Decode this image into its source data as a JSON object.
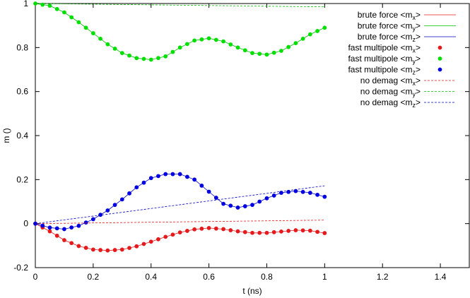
{
  "chart_data": {
    "type": "line",
    "xlabel": "t (ns)",
    "ylabel": "m ()",
    "xlim": [
      0,
      1.5
    ],
    "ylim": [
      -0.2,
      1.0
    ],
    "xticks": [
      "0",
      "0.2",
      "0.4",
      "0.6",
      "0.8",
      "1",
      "1.2",
      "1.4"
    ],
    "yticks": [
      "-0.2",
      "0",
      "0.2",
      "0.4",
      "0.6",
      "0.8",
      "1"
    ],
    "grid": false,
    "legend_position": "top-right",
    "series": [
      {
        "name": "brute force <mx>",
        "label_prefix": "brute force <m",
        "label_sub": "x",
        "label_suffix": ">",
        "style": "solid",
        "color": "#e41a1c",
        "x": [
          0,
          0.05,
          0.1,
          0.15,
          0.2,
          0.25,
          0.3,
          0.35,
          0.4,
          0.45,
          0.5,
          0.55,
          0.6,
          0.65,
          0.7,
          0.75,
          0.8,
          0.85,
          0.9,
          0.95,
          1.0
        ],
        "y": [
          0,
          -0.035,
          -0.075,
          -0.102,
          -0.118,
          -0.122,
          -0.118,
          -0.103,
          -0.082,
          -0.06,
          -0.04,
          -0.026,
          -0.02,
          -0.025,
          -0.035,
          -0.042,
          -0.042,
          -0.036,
          -0.03,
          -0.032,
          -0.043
        ]
      },
      {
        "name": "brute force <my>",
        "label_prefix": "brute force <m",
        "label_sub": "y",
        "label_suffix": ">",
        "style": "solid",
        "color": "#00c000",
        "x": [
          0,
          0.05,
          0.1,
          0.15,
          0.2,
          0.25,
          0.3,
          0.35,
          0.4,
          0.45,
          0.5,
          0.55,
          0.6,
          0.65,
          0.7,
          0.75,
          0.8,
          0.85,
          0.9,
          0.95,
          1.0
        ],
        "y": [
          1.0,
          0.99,
          0.96,
          0.915,
          0.865,
          0.815,
          0.775,
          0.752,
          0.745,
          0.76,
          0.8,
          0.832,
          0.842,
          0.828,
          0.8,
          0.775,
          0.768,
          0.785,
          0.82,
          0.86,
          0.89
        ]
      },
      {
        "name": "brute force <mz>",
        "label_prefix": "brute force <m",
        "label_sub": "z",
        "label_suffix": ">",
        "style": "solid",
        "color": "#0000c0",
        "x": [
          0,
          0.05,
          0.1,
          0.15,
          0.2,
          0.25,
          0.3,
          0.35,
          0.4,
          0.45,
          0.5,
          0.55,
          0.6,
          0.65,
          0.7,
          0.75,
          0.8,
          0.85,
          0.9,
          0.95,
          1.0
        ],
        "y": [
          0,
          -0.018,
          -0.025,
          -0.01,
          0.02,
          0.06,
          0.11,
          0.165,
          0.207,
          0.225,
          0.225,
          0.2,
          0.145,
          0.09,
          0.073,
          0.085,
          0.115,
          0.14,
          0.148,
          0.14,
          0.122
        ]
      },
      {
        "name": "fast multipole <mx>",
        "label_prefix": "fast multipole <m",
        "label_sub": "x",
        "label_suffix": ">",
        "style": "points",
        "color": "#e41a1c",
        "x": [
          0,
          0.05,
          0.1,
          0.15,
          0.2,
          0.25,
          0.3,
          0.35,
          0.4,
          0.45,
          0.5,
          0.55,
          0.6,
          0.65,
          0.7,
          0.75,
          0.8,
          0.85,
          0.9,
          0.95,
          1.0
        ],
        "y": [
          0,
          -0.035,
          -0.075,
          -0.102,
          -0.118,
          -0.122,
          -0.118,
          -0.103,
          -0.082,
          -0.06,
          -0.04,
          -0.026,
          -0.02,
          -0.025,
          -0.035,
          -0.042,
          -0.042,
          -0.036,
          -0.03,
          -0.032,
          -0.043
        ]
      },
      {
        "name": "fast multipole <my>",
        "label_prefix": "fast multipole <m",
        "label_sub": "y",
        "label_suffix": ">",
        "style": "points",
        "color": "#00e000",
        "x": [
          0,
          0.05,
          0.1,
          0.15,
          0.2,
          0.25,
          0.3,
          0.35,
          0.4,
          0.45,
          0.5,
          0.55,
          0.6,
          0.65,
          0.7,
          0.75,
          0.8,
          0.85,
          0.9,
          0.95,
          1.0
        ],
        "y": [
          1.0,
          0.99,
          0.96,
          0.915,
          0.865,
          0.815,
          0.775,
          0.752,
          0.745,
          0.76,
          0.8,
          0.832,
          0.842,
          0.828,
          0.8,
          0.775,
          0.768,
          0.785,
          0.82,
          0.86,
          0.89
        ]
      },
      {
        "name": "fast multipole <mz>",
        "label_prefix": "fast multipole <m",
        "label_sub": "z",
        "label_suffix": ">",
        "style": "points",
        "color": "#0000e0",
        "x": [
          0,
          0.05,
          0.1,
          0.15,
          0.2,
          0.25,
          0.3,
          0.35,
          0.4,
          0.45,
          0.5,
          0.55,
          0.6,
          0.65,
          0.7,
          0.75,
          0.8,
          0.85,
          0.9,
          0.95,
          1.0
        ],
        "y": [
          0,
          -0.018,
          -0.025,
          -0.01,
          0.02,
          0.06,
          0.11,
          0.165,
          0.207,
          0.225,
          0.225,
          0.2,
          0.145,
          0.09,
          0.073,
          0.085,
          0.115,
          0.14,
          0.148,
          0.14,
          0.122
        ]
      },
      {
        "name": "no demag <mx>",
        "label_prefix": "no demag <m",
        "label_sub": "x",
        "label_suffix": ">",
        "style": "dashed",
        "color": "#e41a1c",
        "x": [
          0,
          1.0
        ],
        "y": [
          0,
          0.016
        ]
      },
      {
        "name": "no demag <my>",
        "label_prefix": "no demag <m",
        "label_sub": "y",
        "label_suffix": ">",
        "style": "dashed",
        "color": "#00c000",
        "x": [
          0,
          1.0
        ],
        "y": [
          1.0,
          0.985
        ]
      },
      {
        "name": "no demag <mz>",
        "label_prefix": "no demag <m",
        "label_sub": "z",
        "label_suffix": ">",
        "style": "dashed",
        "color": "#0000c0",
        "x": [
          0,
          1.0
        ],
        "y": [
          0,
          0.172
        ]
      }
    ]
  }
}
